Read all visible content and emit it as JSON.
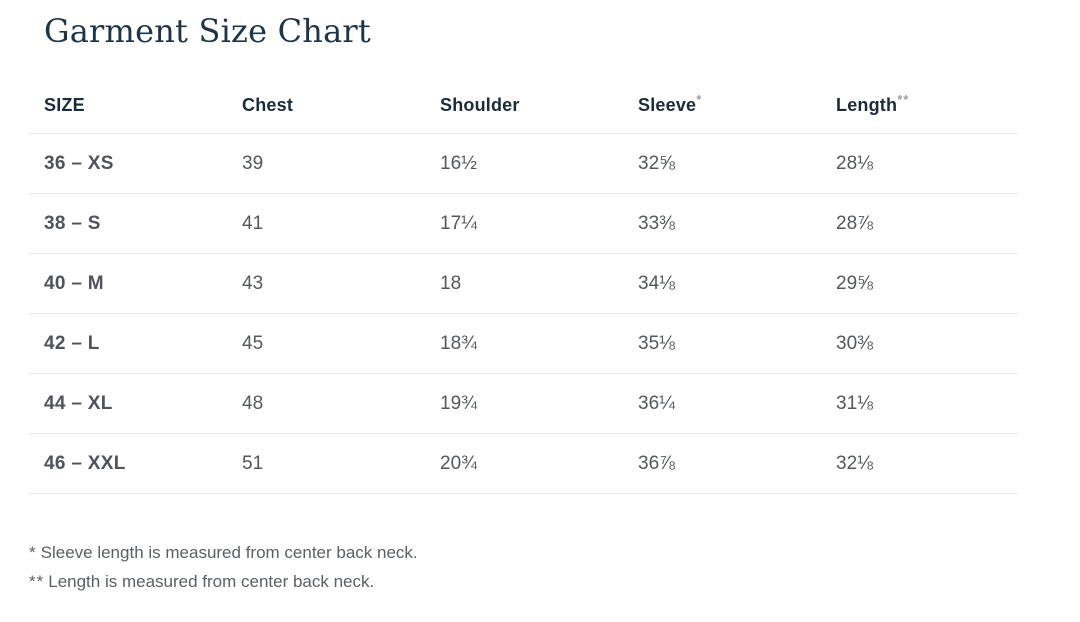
{
  "title": "Garment Size Chart",
  "colors": {
    "title_navy": "#1e3448",
    "header_navy": "#1a2b3c",
    "body_gray": "#54585c",
    "footnote_gray": "#5b6065",
    "divider": "#e9eaeb",
    "background": "#ffffff"
  },
  "table": {
    "headers": [
      {
        "label": "SIZE",
        "mark": ""
      },
      {
        "label": "Chest",
        "mark": ""
      },
      {
        "label": "Shoulder",
        "mark": ""
      },
      {
        "label": "Sleeve",
        "mark": "*"
      },
      {
        "label": "Length",
        "mark": "**"
      }
    ],
    "rows": [
      {
        "size": "36 – XS",
        "chest": "39",
        "shoulder": "16½",
        "sleeve": "32⅝",
        "length": "28⅛"
      },
      {
        "size": "38 – S",
        "chest": "41",
        "shoulder": "17¼",
        "sleeve": "33⅜",
        "length": "28⅞"
      },
      {
        "size": "40 – M",
        "chest": "43",
        "shoulder": "18",
        "sleeve": "34⅛",
        "length": "29⅝"
      },
      {
        "size": "42 – L",
        "chest": "45",
        "shoulder": "18¾",
        "sleeve": "35⅛",
        "length": "30⅜"
      },
      {
        "size": "44 – XL",
        "chest": "48",
        "shoulder": "19¾",
        "sleeve": "36¼",
        "length": "31⅛"
      },
      {
        "size": "46 – XXL",
        "chest": "51",
        "shoulder": "20¾",
        "sleeve": "36⅞",
        "length": "32⅛"
      }
    ]
  },
  "footnotes": [
    {
      "marker": "*",
      "text": "Sleeve length is measured from center back neck."
    },
    {
      "marker": "**",
      "text": "Length is measured from center back neck."
    }
  ],
  "chart_data": {
    "type": "table",
    "title": "Garment Size Chart",
    "columns": [
      "SIZE",
      "Chest",
      "Shoulder",
      "Sleeve*",
      "Length**"
    ],
    "rows": [
      [
        "36 – XS",
        "39",
        "16½",
        "32⅝",
        "28⅛"
      ],
      [
        "38 – S",
        "41",
        "17¼",
        "33⅜",
        "28⅞"
      ],
      [
        "40 – M",
        "43",
        "18",
        "34⅛",
        "29⅝"
      ],
      [
        "42 – L",
        "45",
        "18¾",
        "35⅛",
        "30⅜"
      ],
      [
        "44 – XL",
        "48",
        "19¾",
        "36¼",
        "31⅛"
      ],
      [
        "46 – XXL",
        "51",
        "20¾",
        "36⅞",
        "32⅛"
      ]
    ],
    "notes": [
      "* Sleeve length is measured from center back neck.",
      "** Length is measured from center back neck."
    ]
  }
}
